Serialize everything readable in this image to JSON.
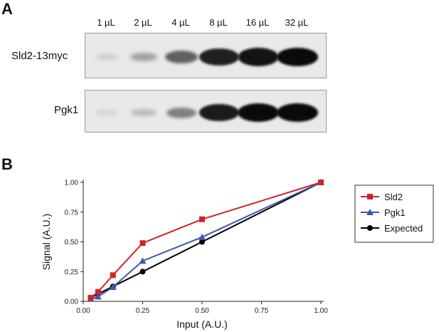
{
  "panel_a": {
    "letter": "A",
    "lanes": [
      "1 µL",
      "2 µL",
      "4 µL",
      "8 µL",
      "16 µL",
      "32 µL"
    ],
    "blots": [
      {
        "label": "Sld2-13myc",
        "intensities": [
          0.1,
          0.3,
          0.6,
          0.9,
          0.96,
          1.0
        ]
      },
      {
        "label": "Pgk1",
        "intensities": [
          0.06,
          0.18,
          0.45,
          0.92,
          1.0,
          1.0
        ]
      }
    ]
  },
  "panel_b": {
    "letter": "B",
    "chart_data": {
      "type": "line",
      "xlabel": "Input (A.U.)",
      "ylabel": "Signal (A.U.)",
      "xlim": [
        0,
        1
      ],
      "ylim": [
        0,
        1
      ],
      "xticks": [
        "0.00",
        "0.25",
        "0.50",
        "0.75",
        "1.00"
      ],
      "yticks": [
        "0.00",
        "0.25",
        "0.50",
        "0.75",
        "1.00"
      ],
      "grid": false,
      "legend_position": "right",
      "series": [
        {
          "name": "Sld2",
          "color": "#d2232a",
          "marker": "square",
          "x": [
            0.03125,
            0.0625,
            0.125,
            0.25,
            0.5,
            1.0
          ],
          "y": [
            0.03,
            0.08,
            0.22,
            0.49,
            0.69,
            1.0
          ]
        },
        {
          "name": "Pgk1",
          "color": "#3a5ba9",
          "marker": "triangle",
          "x": [
            0.03125,
            0.0625,
            0.125,
            0.25,
            0.5,
            1.0
          ],
          "y": [
            0.02,
            0.04,
            0.12,
            0.34,
            0.54,
            1.0
          ]
        },
        {
          "name": "Expected",
          "color": "#000000",
          "marker": "circle",
          "x": [
            0.03125,
            0.0625,
            0.125,
            0.25,
            0.5,
            1.0
          ],
          "y": [
            0.03125,
            0.0625,
            0.125,
            0.25,
            0.5,
            1.0
          ]
        }
      ]
    }
  }
}
